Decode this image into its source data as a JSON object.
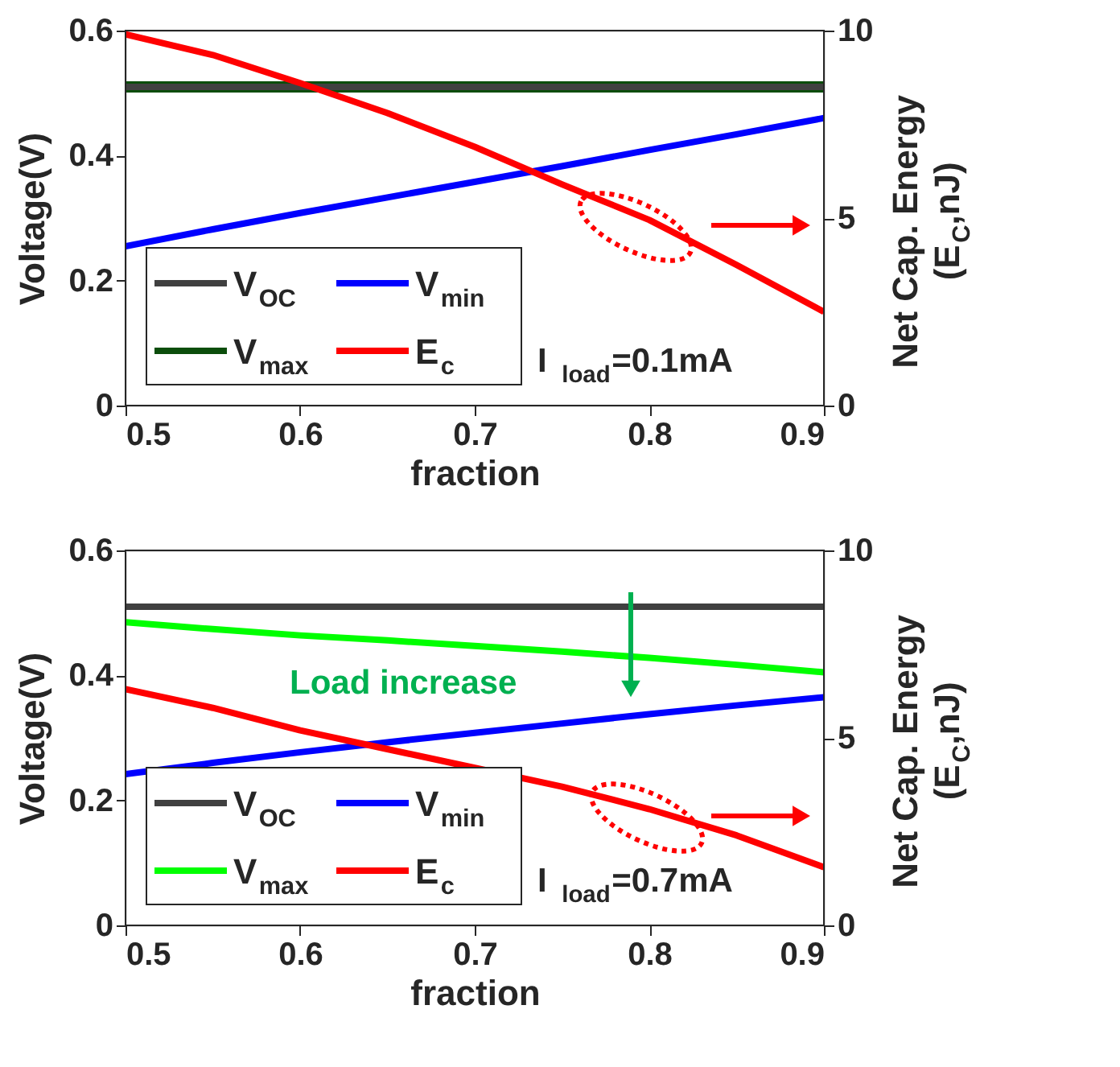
{
  "chart_data": [
    {
      "type": "line",
      "x": [
        0.5,
        0.55,
        0.6,
        0.65,
        0.7,
        0.75,
        0.8,
        0.85,
        0.9
      ],
      "xlim": [
        0.5,
        0.9
      ],
      "xticks": [
        0.5,
        0.6,
        0.7,
        0.8,
        0.9
      ],
      "ylim": [
        0,
        0.6
      ],
      "yticks": [
        0,
        0.2,
        0.4,
        0.6
      ],
      "y2lim": [
        0,
        10
      ],
      "y2ticks": [
        0,
        5,
        10
      ],
      "xlabel": "fraction",
      "ylabel": "Voltage(V)",
      "y2label": "Net Cap. Energy (E$_{C}$,nJ)",
      "legend": "bottom left",
      "grid": false,
      "annotations": [
        "I$_{load}$=0.1mA"
      ],
      "series": [
        {
          "name": "V$_{OC}$",
          "color": "#404040",
          "values": [
            0.51,
            0.51,
            0.51,
            0.51,
            0.51,
            0.51,
            0.51,
            0.51,
            0.51
          ]
        },
        {
          "name": "V$_{max}$",
          "color": "#0b4d0b",
          "values": [
            0.51,
            0.51,
            0.51,
            0.51,
            0.51,
            0.51,
            0.51,
            0.51,
            0.51
          ]
        },
        {
          "name": "V$_{min}$",
          "color": "#0000ff",
          "values": [
            0.255,
            0.282,
            0.308,
            0.333,
            0.358,
            0.383,
            0.409,
            0.434,
            0.46
          ]
        },
        {
          "name": "E$_{c}$",
          "color": "#ff0000",
          "axis": "y2",
          "values": [
            9.9,
            9.35,
            8.6,
            7.8,
            6.9,
            5.9,
            4.95,
            3.75,
            2.5
          ]
        }
      ]
    },
    {
      "type": "line",
      "x": [
        0.5,
        0.55,
        0.6,
        0.65,
        0.7,
        0.75,
        0.8,
        0.85,
        0.9
      ],
      "xlim": [
        0.5,
        0.9
      ],
      "xticks": [
        0.5,
        0.6,
        0.7,
        0.8,
        0.9
      ],
      "ylim": [
        0,
        0.6
      ],
      "yticks": [
        0,
        0.2,
        0.4,
        0.6
      ],
      "y2lim": [
        0,
        10
      ],
      "y2ticks": [
        0,
        5,
        10
      ],
      "xlabel": "fraction",
      "ylabel": "Voltage(V)",
      "y2label": "Net Cap. Energy (E$_{C}$,nJ)",
      "legend": "bottom left",
      "grid": false,
      "annotations": [
        "Load increase",
        "I$_{load}$=0.7mA"
      ],
      "series": [
        {
          "name": "V$_{OC}$",
          "color": "#404040",
          "values": [
            0.51,
            0.51,
            0.51,
            0.51,
            0.51,
            0.51,
            0.51,
            0.51,
            0.51
          ]
        },
        {
          "name": "V$_{max}$",
          "color": "#00ff00",
          "values": [
            0.485,
            0.474,
            0.464,
            0.456,
            0.447,
            0.438,
            0.428,
            0.417,
            0.405
          ]
        },
        {
          "name": "V$_{min}$",
          "color": "#0000ff",
          "values": [
            0.242,
            0.26,
            0.277,
            0.293,
            0.308,
            0.323,
            0.338,
            0.352,
            0.365
          ]
        },
        {
          "name": "E$_{c}$",
          "color": "#ff0000",
          "axis": "y2",
          "values": [
            6.3,
            5.8,
            5.2,
            4.7,
            4.2,
            3.7,
            3.1,
            2.4,
            1.55
          ]
        }
      ]
    }
  ]
}
